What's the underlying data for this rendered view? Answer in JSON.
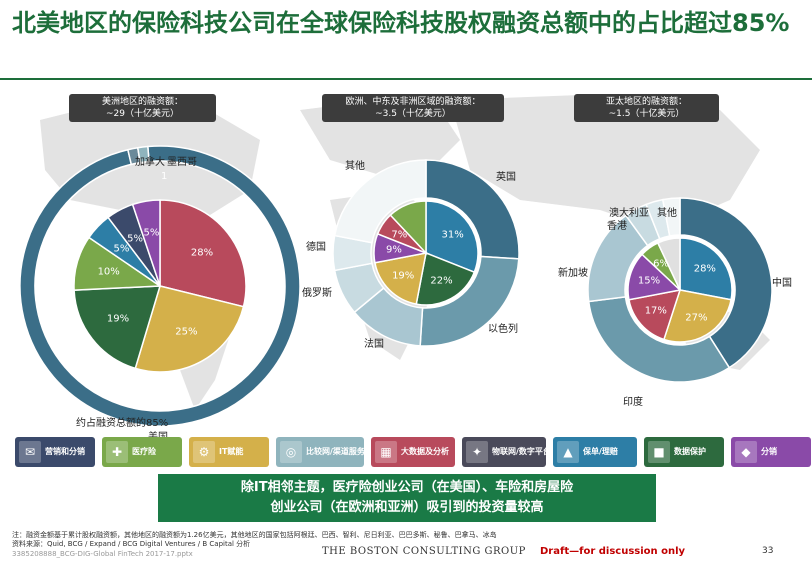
{
  "title": "北美地区的保险科技公司在全球保险科技股权融资总额中的占比超过85%",
  "regions": [
    {
      "name": "美洲地区的融资额：",
      "amount": "~29（十亿美元）"
    },
    {
      "name": "欧洲、中东及非洲区域的融资额：",
      "amount": "~3.5（十亿美元）"
    },
    {
      "name": "亚太地区的融资额：",
      "amount": "~1.5（十亿美元）"
    }
  ],
  "chart_data": [
    {
      "type": "pie",
      "title": "美洲地区的融资额：~29（十亿美元）",
      "outer_ring": [
        {
          "label": "美国",
          "value": 85
        },
        {
          "label": "加拿大",
          "value": 1
        },
        {
          "label": "墨西哥",
          "value": 1
        }
      ],
      "inner_pie": [
        {
          "label": "28%",
          "value": 28
        },
        {
          "label": "25%",
          "value": 25
        },
        {
          "label": "19%",
          "value": 19
        },
        {
          "label": "10%",
          "value": 10
        },
        {
          "label": "5%",
          "value": 5
        },
        {
          "label": "5%",
          "value": 5
        },
        {
          "label": "5%",
          "value": 5
        }
      ],
      "annotation": "约占融资总额的85%",
      "outer_labels": {
        "canada": "加拿大",
        "mexico": "墨西哥",
        "mexico_value": "1",
        "usa": "美国"
      }
    },
    {
      "type": "pie",
      "title": "欧洲、中东及非洲区域的融资额：~3.5（十亿美元）",
      "outer_ring": [
        {
          "label": "英国",
          "value": 26
        },
        {
          "label": "以色列",
          "value": 25
        },
        {
          "label": "法国",
          "value": 13
        },
        {
          "label": "俄罗斯",
          "value": 8
        },
        {
          "label": "德国",
          "value": 6
        },
        {
          "label": "其他",
          "value": 22
        }
      ],
      "inner_pie": [
        {
          "label": "31%",
          "value": 31
        },
        {
          "label": "22%",
          "value": 22
        },
        {
          "label": "19%",
          "value": 19
        },
        {
          "label": "9%",
          "value": 9
        },
        {
          "label": "7%",
          "value": 7
        },
        {
          "label": "",
          "value": 12
        }
      ]
    },
    {
      "type": "pie",
      "title": "亚太地区的融资额：~1.5（十亿美元）",
      "outer_ring": [
        {
          "label": "中国",
          "value": 41
        },
        {
          "label": "印度",
          "value": 32
        },
        {
          "label": "新加坡",
          "value": 17
        },
        {
          "label": "香港",
          "value": 4
        },
        {
          "label": "澳大利亚",
          "value": 3
        },
        {
          "label": "其他",
          "value": 3
        }
      ],
      "inner_pie": [
        {
          "label": "28%",
          "value": 28
        },
        {
          "label": "27%",
          "value": 27
        },
        {
          "label": "17%",
          "value": 17
        },
        {
          "label": "15%",
          "value": 15
        },
        {
          "label": "6%",
          "value": 6
        },
        {
          "label": "",
          "value": 7
        }
      ]
    }
  ],
  "categories": [
    {
      "label": "营销和分销",
      "color": "#3b4a6b",
      "icon": "megaphone-icon",
      "glyph": "✉"
    },
    {
      "label": "医疗险",
      "color": "#7aa84a",
      "icon": "medical-icon",
      "glyph": "✚"
    },
    {
      "label": "IT赋能",
      "color": "#d4b04a",
      "icon": "gear-icon",
      "glyph": "⚙"
    },
    {
      "label": "比较网/渠道服务",
      "color": "#8fb4bd",
      "icon": "compare-icon",
      "glyph": "◎"
    },
    {
      "label": "大数据及分析",
      "color": "#b84a5c",
      "icon": "data-icon",
      "glyph": "▦"
    },
    {
      "label": "物联网/数字平台",
      "color": "#4a4a5a",
      "icon": "iot-icon",
      "glyph": "✦"
    },
    {
      "label": "保单/理赔",
      "color": "#2d7ea6",
      "icon": "chart-icon",
      "glyph": "▲"
    },
    {
      "label": "数据保护",
      "color": "#2d6a3e",
      "icon": "lock-icon",
      "glyph": "■"
    },
    {
      "label": "分销",
      "color": "#8a4aa8",
      "icon": "distribution-icon",
      "glyph": "◆"
    }
  ],
  "callout": {
    "line1": "除IT相邻主题，医疗险创业公司（在美国）、车险和房屋险",
    "line2": "创业公司（在欧洲和亚洲）吸引到的投资量较高"
  },
  "footnote1": "注：融资金额基于累计股权融资额，其他地区的融资额为1.26亿美元，其他地区的国家包括阿根廷、巴西、智利、尼日利亚、巴巴多斯、秘鲁、巴拿马、冰岛",
  "footnote2": "资料来源：Quid, BCG / Expand / BCG Digital Ventures / B Capital 分析",
  "footnote3": "3385208888_BCG-DIG-Global FinTech 2017-17.pptx",
  "brand": "THE BOSTON CONSULTING GROUP",
  "draft": "Draft—for discussion only",
  "page": "33",
  "colors": {
    "title_green": "#1d6e3a",
    "ring_blue": "#3b6e88",
    "ring_light": "#a9c6d1"
  }
}
